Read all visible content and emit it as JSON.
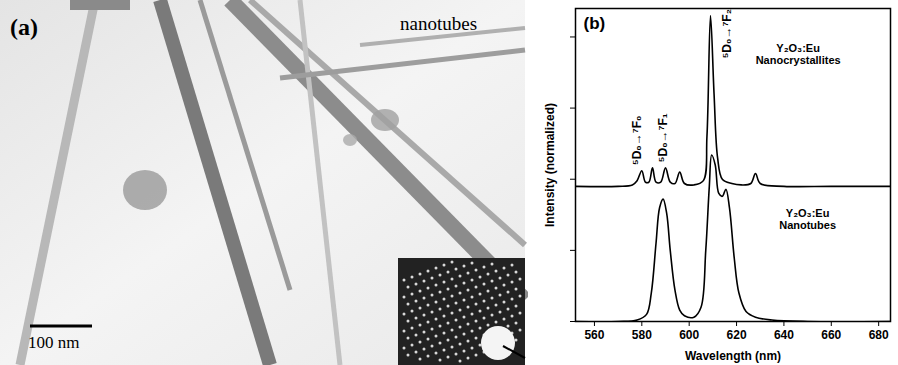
{
  "image_panel": {
    "label": "(a)",
    "caption": "nanotubes",
    "scale_bar": "100 nm"
  },
  "chart_data": {
    "type": "line",
    "panel_label": "(b)",
    "x_label": "Wavelength (nm)",
    "y_label": "Intensity (normalized)",
    "xlim": [
      552,
      685
    ],
    "xticks": [
      560,
      580,
      600,
      620,
      640,
      660,
      680
    ],
    "ylim": [
      0,
      2.2
    ],
    "yticks": [
      0,
      0.5,
      1,
      1.5,
      2
    ],
    "tick_labels": "x",
    "grid": false,
    "series": [
      {
        "name": "Y₂O₃:Eu Nanocrystallites",
        "color": "#000000",
        "x": [
          552,
          570,
          576,
          578,
          580,
          581.5,
          583,
          584.5,
          586,
          588,
          590,
          592,
          594,
          596,
          598,
          602,
          606,
          607.5,
          609,
          610.5,
          612,
          614,
          618,
          622,
          626,
          628,
          630,
          640,
          660,
          685
        ],
        "values": [
          0.95,
          0.95,
          0.96,
          0.99,
          1.06,
          0.98,
          0.98,
          1.08,
          0.98,
          0.98,
          1.08,
          0.98,
          0.97,
          1.05,
          0.97,
          0.96,
          0.99,
          1.3,
          2.15,
          1.6,
          1.15,
          1.0,
          0.97,
          0.96,
          0.97,
          1.04,
          0.97,
          0.95,
          0.95,
          0.95
        ]
      },
      {
        "name": "Y₂O₃:Eu Nanotubes",
        "color": "#000000",
        "x": [
          552,
          570,
          578,
          582,
          584,
          586,
          587.5,
          589,
          590.5,
          592,
          594,
          596,
          598,
          602,
          605,
          607,
          608.5,
          609.5,
          611,
          612.5,
          614,
          615.5,
          617,
          619,
          621,
          624,
          628,
          635,
          650,
          685
        ],
        "values": [
          0.0,
          0.0,
          0.01,
          0.05,
          0.2,
          0.55,
          0.8,
          0.86,
          0.76,
          0.5,
          0.22,
          0.08,
          0.04,
          0.03,
          0.1,
          0.5,
          0.95,
          1.17,
          1.1,
          0.9,
          0.88,
          0.93,
          0.8,
          0.45,
          0.2,
          0.07,
          0.03,
          0.01,
          0.0,
          0.0
        ]
      }
    ],
    "transition_labels": [
      {
        "text": "⁵D₀→⁷F₀",
        "x": 578,
        "y": 1.1
      },
      {
        "text": "⁵D₀→⁷F₁",
        "x": 589,
        "y": 1.12
      },
      {
        "text": "⁵D₀→⁷F₂",
        "x": 616,
        "y": 1.85
      }
    ],
    "annotations": [
      {
        "text": "Y₂O₃:Eu\nNanocrystallites",
        "x": 646,
        "y": 1.88
      },
      {
        "text": "Y₂O₃:Eu\nNanotubes",
        "x": 650,
        "y": 0.72
      }
    ]
  }
}
